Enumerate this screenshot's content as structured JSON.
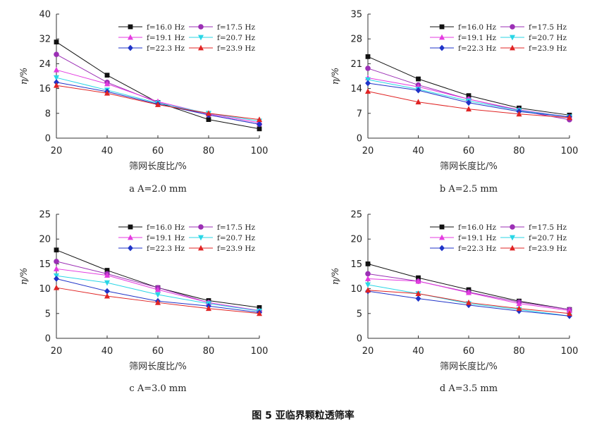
{
  "figure_caption": "图 5   亚临界颗粒透筛率",
  "legend_labels": [
    "f=16.0 Hz",
    "f=17.5 Hz",
    "f=19.1 Hz",
    "f=20.7 Hz",
    "f=22.3 Hz",
    "f=23.9 Hz"
  ],
  "series_styles": [
    {
      "color": "#111111",
      "marker": "square"
    },
    {
      "color": "#9b2fb5",
      "marker": "circle"
    },
    {
      "color": "#e43be0",
      "marker": "triangle"
    },
    {
      "color": "#29d6e6",
      "marker": "triangle-down"
    },
    {
      "color": "#1f33c8",
      "marker": "diamond"
    },
    {
      "color": "#e02424",
      "marker": "triangle"
    }
  ],
  "chart_data": [
    {
      "type": "line",
      "caption": "a  A=2.0 mm",
      "xlabel": "筛网长度比/%",
      "ylabel": "η/%",
      "x": [
        20,
        40,
        60,
        80,
        100
      ],
      "xlim": [
        20,
        100
      ],
      "ylim": [
        0,
        40
      ],
      "yticks": [
        0,
        8,
        16,
        24,
        32,
        40
      ],
      "series": [
        {
          "name": "f=16.0 Hz",
          "values": [
            31,
            20.3,
            11.5,
            6,
            3
          ]
        },
        {
          "name": "f=17.5 Hz",
          "values": [
            27,
            18,
            11.5,
            7.5,
            4.5
          ]
        },
        {
          "name": "f=19.1 Hz",
          "values": [
            22,
            17.5,
            11.8,
            7.8,
            5
          ]
        },
        {
          "name": "f=20.7 Hz",
          "values": [
            19.5,
            15.5,
            11.3,
            8,
            5.5
          ]
        },
        {
          "name": "f=22.3 Hz",
          "values": [
            18,
            15,
            11,
            7.5,
            4.5
          ]
        },
        {
          "name": "f=23.9 Hz",
          "values": [
            17,
            14.5,
            10.8,
            8,
            6
          ]
        }
      ]
    },
    {
      "type": "line",
      "caption": "b  A=2.5 mm",
      "xlabel": "筛网长度比/%",
      "ylabel": "η/%",
      "x": [
        20,
        40,
        60,
        80,
        100
      ],
      "xlim": [
        20,
        100
      ],
      "ylim": [
        0,
        35
      ],
      "yticks": [
        0,
        7,
        14,
        21,
        28,
        35
      ],
      "series": [
        {
          "name": "f=16.0 Hz",
          "values": [
            23,
            16.7,
            12,
            8.5,
            6.5
          ]
        },
        {
          "name": "f=17.5 Hz",
          "values": [
            19.7,
            15,
            11,
            7.8,
            5.2
          ]
        },
        {
          "name": "f=19.1 Hz",
          "values": [
            17,
            14.5,
            11,
            8,
            6
          ]
        },
        {
          "name": "f=20.7 Hz",
          "values": [
            16.5,
            13.8,
            10.5,
            7.8,
            6
          ]
        },
        {
          "name": "f=22.3 Hz",
          "values": [
            15.5,
            13.5,
            10,
            7.5,
            6
          ]
        },
        {
          "name": "f=23.9 Hz",
          "values": [
            13.2,
            10.2,
            8.2,
            6.8,
            5.8
          ]
        }
      ]
    },
    {
      "type": "line",
      "caption": "c  A=3.0 mm",
      "xlabel": "筛网长度比/%",
      "ylabel": "η/%",
      "x": [
        20,
        40,
        60,
        80,
        100
      ],
      "xlim": [
        20,
        100
      ],
      "ylim": [
        0,
        25
      ],
      "yticks": [
        0,
        5,
        10,
        15,
        20,
        25
      ],
      "series": [
        {
          "name": "f=16.0 Hz",
          "values": [
            17.8,
            13.7,
            10.2,
            7.6,
            6.2
          ]
        },
        {
          "name": "f=17.5 Hz",
          "values": [
            15.5,
            13,
            10.2,
            7.2,
            5.5
          ]
        },
        {
          "name": "f=19.1 Hz",
          "values": [
            14,
            12.7,
            9.8,
            7.2,
            5.6
          ]
        },
        {
          "name": "f=20.7 Hz",
          "values": [
            12.6,
            11.2,
            8.8,
            7,
            5.5
          ]
        },
        {
          "name": "f=22.3 Hz",
          "values": [
            12,
            9.5,
            7.5,
            6.5,
            5.2
          ]
        },
        {
          "name": "f=23.9 Hz",
          "values": [
            10.2,
            8.5,
            7.2,
            6,
            5
          ]
        }
      ]
    },
    {
      "type": "line",
      "caption": "d  A=3.5 mm",
      "xlabel": "筛网长度比/%",
      "ylabel": "η/%",
      "x": [
        20,
        40,
        60,
        80,
        100
      ],
      "xlim": [
        20,
        100
      ],
      "ylim": [
        0,
        25
      ],
      "yticks": [
        0,
        5,
        10,
        15,
        20,
        25
      ],
      "series": [
        {
          "name": "f=16.0 Hz",
          "values": [
            15,
            12.2,
            9.8,
            7.5,
            5.8
          ]
        },
        {
          "name": "f=17.5 Hz",
          "values": [
            13,
            11.5,
            9.3,
            7.3,
            5.8
          ]
        },
        {
          "name": "f=19.1 Hz",
          "values": [
            12,
            11.5,
            9.2,
            7,
            5.6
          ]
        },
        {
          "name": "f=20.7 Hz",
          "values": [
            10.8,
            9,
            7,
            5.8,
            4.5
          ]
        },
        {
          "name": "f=22.3 Hz",
          "values": [
            9.5,
            8,
            6.7,
            5.5,
            4.5
          ]
        },
        {
          "name": "f=23.9 Hz",
          "values": [
            9.7,
            9,
            7.2,
            6,
            5
          ]
        }
      ]
    }
  ]
}
